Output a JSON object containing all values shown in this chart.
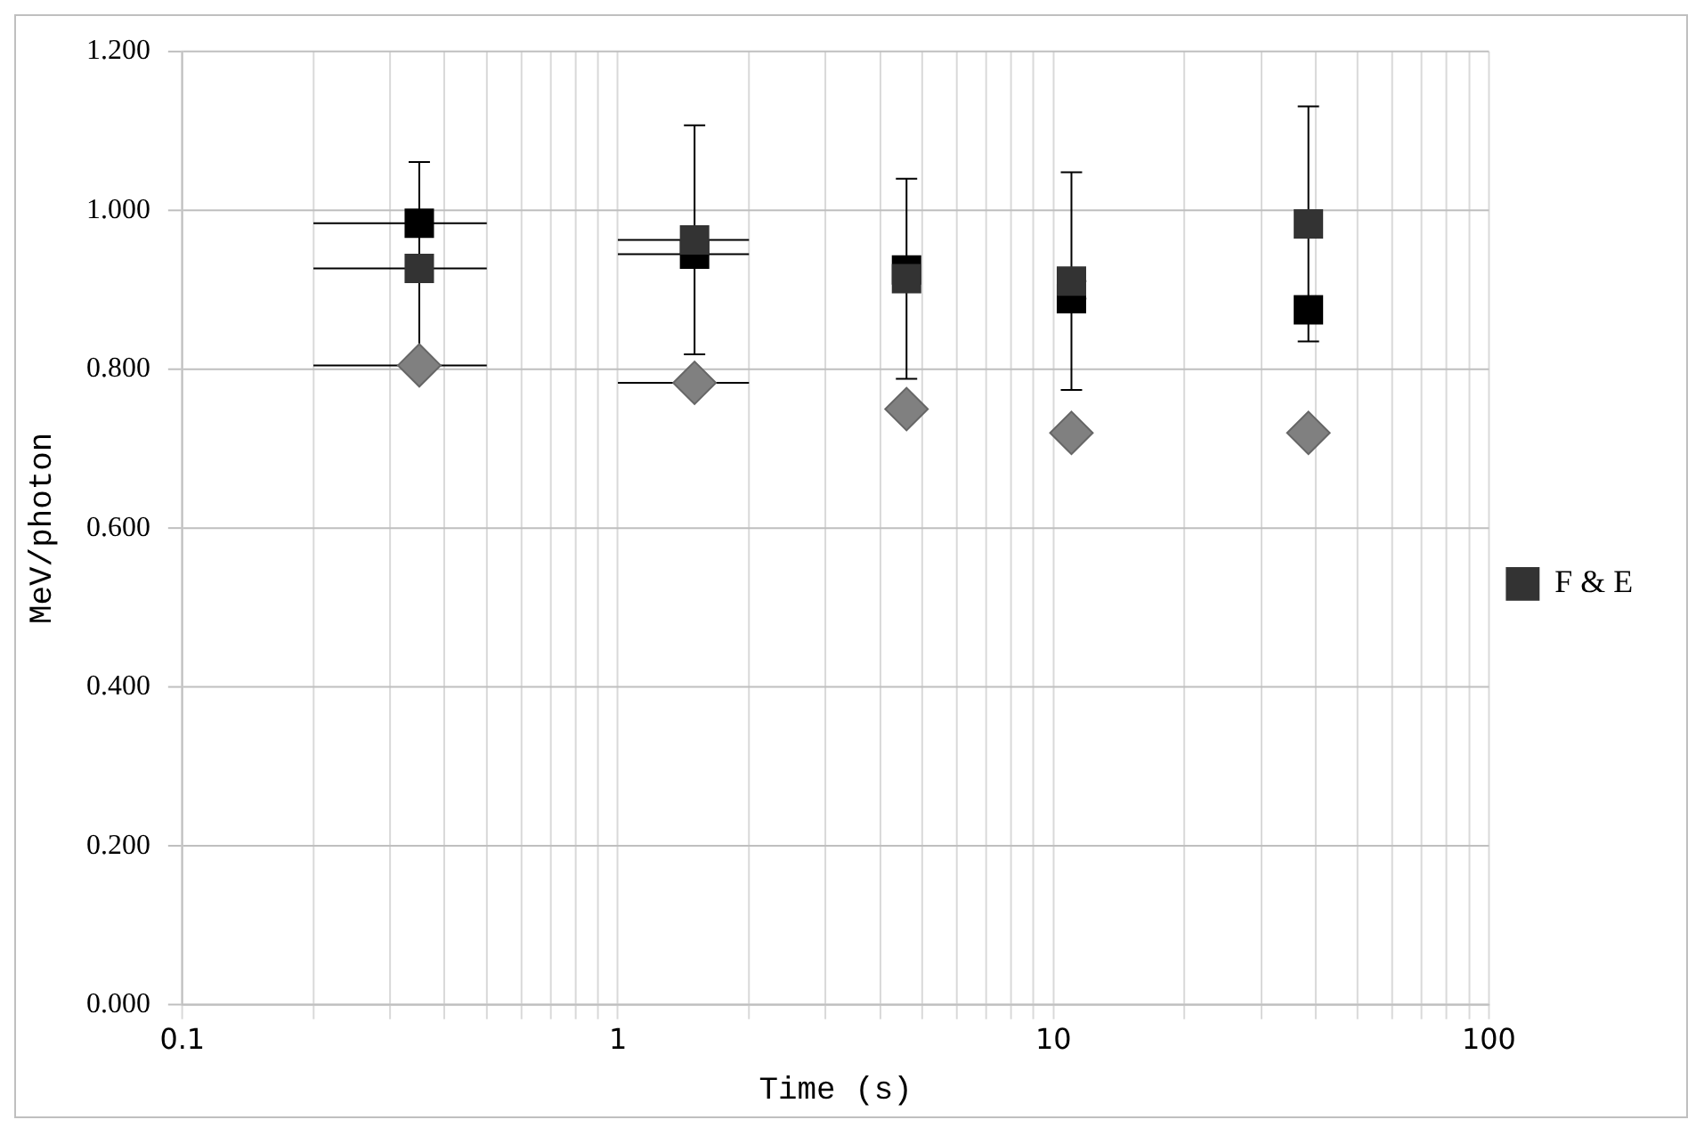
{
  "chart_data": {
    "type": "scatter",
    "xlabel": "Time (s)",
    "ylabel": "MeV/photon",
    "log": "x",
    "grid": true,
    "legend": "right",
    "x": [
      0.35,
      1.5,
      4.6,
      11,
      38.5
    ],
    "xlim": [
      0.1,
      100
    ],
    "xticks": [
      0.1,
      {
        "value": 0.2,
        "label": null
      },
      {
        "value": 0.3,
        "label": null
      },
      {
        "value": 0.4,
        "label": null
      },
      {
        "value": 0.5,
        "label": null
      },
      {
        "value": 0.6,
        "label": null
      },
      {
        "value": 0.7,
        "label": null
      },
      {
        "value": 0.8,
        "label": null
      },
      {
        "value": 0.9,
        "label": null
      },
      1,
      {
        "value": 2,
        "label": null
      },
      {
        "value": 3,
        "label": null
      },
      {
        "value": 4,
        "label": null
      },
      {
        "value": 5,
        "label": null
      },
      {
        "value": 6,
        "label": null
      },
      {
        "value": 7,
        "label": null
      },
      {
        "value": 8,
        "label": null
      },
      {
        "value": 9,
        "label": null
      },
      10,
      {
        "value": 20,
        "label": null
      },
      {
        "value": 30,
        "label": null
      },
      {
        "value": 40,
        "label": null
      },
      {
        "value": 50,
        "label": null
      },
      {
        "value": 60,
        "label": null
      },
      {
        "value": 70,
        "label": null
      },
      {
        "value": 80,
        "label": null
      },
      {
        "value": 90,
        "label": null
      },
      100
    ],
    "ylim": [
      0,
      1.2
    ],
    "yticks": [
      {
        "value": 0,
        "label": "0.000"
      },
      {
        "value": 0.2,
        "label": "0.200"
      },
      {
        "value": 0.4,
        "label": "0.400"
      },
      {
        "value": 0.6,
        "label": "0.600"
      },
      {
        "value": 0.8,
        "label": "0.800"
      },
      {
        "value": 1,
        "label": "1.000"
      },
      {
        "value": 1.2,
        "label": "1.200"
      }
    ],
    "series": [
      {
        "color": "#808080",
        "marker": "diamond",
        "values": [
          0.805,
          0.783,
          0.75,
          0.72,
          0.72
        ],
        "xerrors": [
          [
            0.2,
            0.5
          ],
          [
            1,
            2
          ],
          [
            4.3,
            4.9
          ],
          [
            10.3,
            11.9
          ],
          [
            36,
            41
          ]
        ]
      },
      {
        "color": "#000000",
        "marker": "square",
        "values": [
          0.984,
          0.945,
          0.925,
          0.889,
          0.875
        ],
        "xerrors": [
          [
            0.2,
            0.5
          ],
          [
            1,
            2
          ],
          [
            4.3,
            4.9
          ],
          [
            10.3,
            11.9
          ],
          [
            36,
            41
          ]
        ]
      },
      {
        "name": "F & E",
        "color": "#333333",
        "marker": "square",
        "values": [
          0.927,
          0.963,
          0.914,
          0.911,
          0.983
        ],
        "errors": [
          0.134,
          0.144,
          0.126,
          0.137,
          0.148
        ],
        "xerrors": [
          [
            0.2,
            0.5
          ],
          [
            1,
            2
          ],
          [
            4.3,
            4.9
          ],
          [
            10.3,
            11.9
          ],
          [
            36,
            41
          ]
        ]
      }
    ]
  }
}
